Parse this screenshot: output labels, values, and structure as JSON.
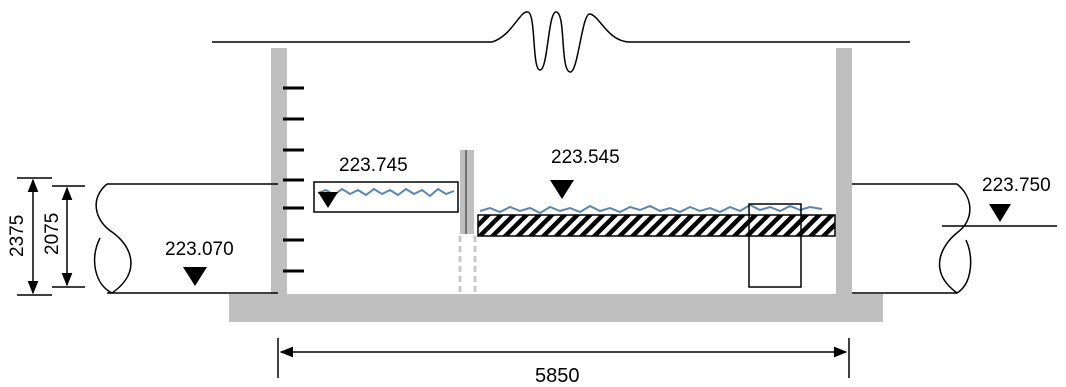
{
  "labels": {
    "level_inlet_box": "223.745",
    "level_channel": "223.545",
    "level_outlet_pipe": "223.750",
    "level_inlet_pipe_invert": "223.070",
    "dim_outer_height": "2375",
    "dim_inner_height": "2075",
    "dim_width": "5850"
  },
  "colors": {
    "wall": "#bfbfbf",
    "water": "#5b86b0",
    "line": "#000000"
  }
}
